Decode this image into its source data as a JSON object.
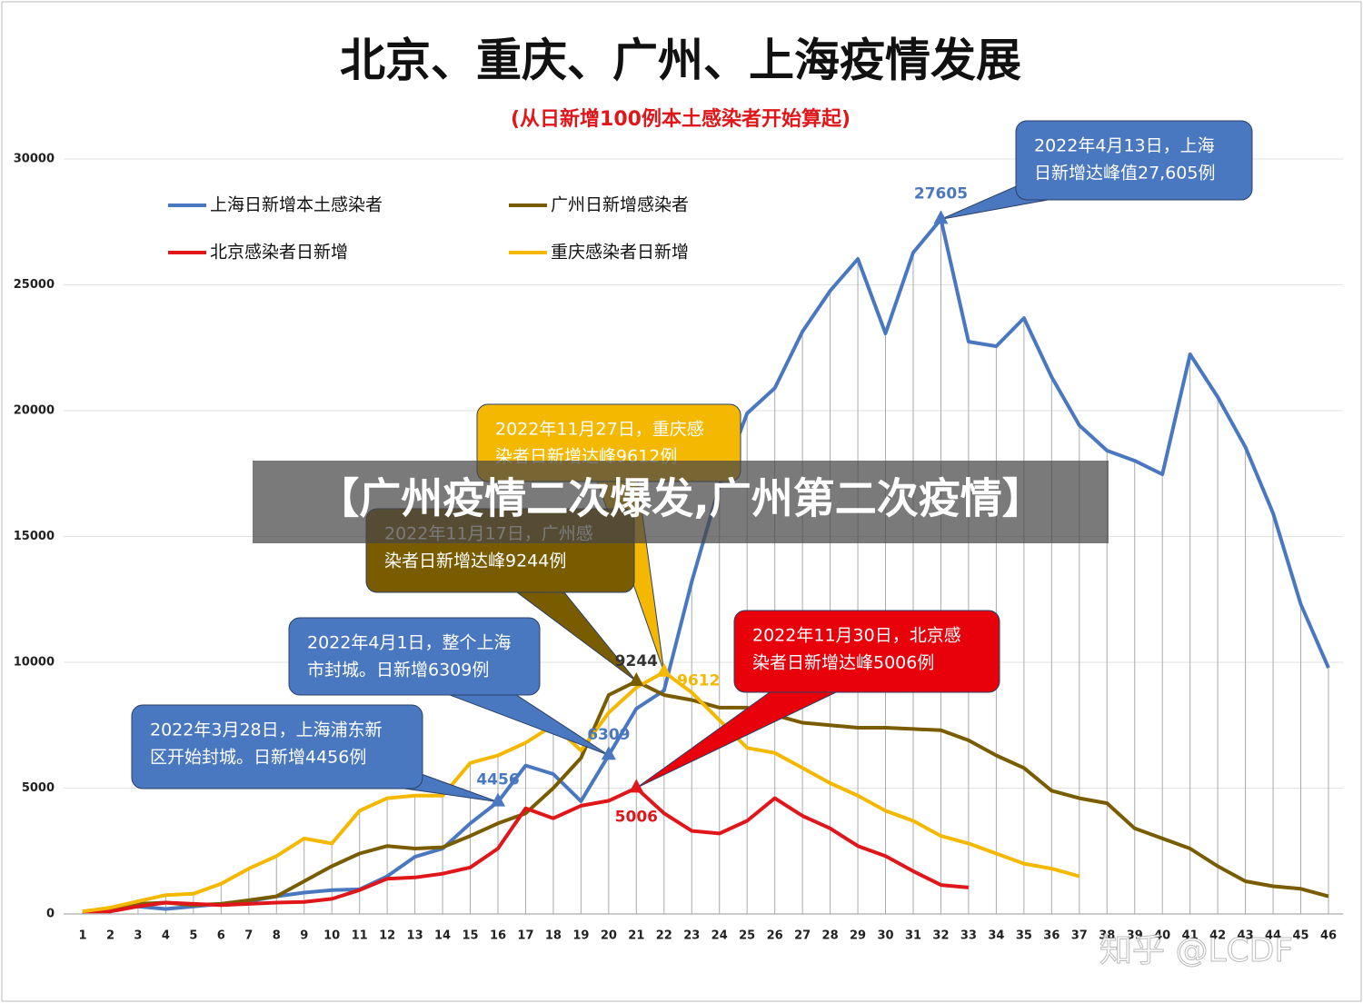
{
  "chart_data": {
    "type": "line",
    "title": "北京、重庆、广州、上海疫情发展",
    "subtitle": "(从日新增100例本土感染者开始算起)",
    "categories": [
      1,
      2,
      3,
      4,
      5,
      6,
      7,
      8,
      9,
      10,
      11,
      12,
      13,
      14,
      15,
      16,
      17,
      18,
      19,
      20,
      21,
      22,
      23,
      24,
      25,
      26,
      27,
      28,
      29,
      30,
      31,
      32,
      33,
      34,
      35,
      36,
      37,
      38,
      39,
      40,
      41,
      42,
      43,
      44,
      45,
      46
    ],
    "ylim": [
      0,
      30000
    ],
    "yticks": [
      0,
      5000,
      10000,
      15000,
      20000,
      25000,
      30000
    ],
    "series": [
      {
        "name": "上海日新增本土感染者",
        "color": "#4a78c0",
        "values": [
          100,
          200,
          300,
          200,
          300,
          400,
          500,
          700,
          850,
          950,
          980,
          1500,
          2270,
          2600,
          3600,
          4456,
          5900,
          5560,
          4480,
          6309,
          8160,
          8880,
          13210,
          17000,
          19890,
          20900,
          23140,
          24760,
          26030,
          23070,
          26280,
          27605,
          22740,
          22560,
          23680,
          21340,
          19420,
          18410,
          18010,
          17470,
          22240,
          20540,
          18550,
          15920,
          12310,
          9780
        ]
      },
      {
        "name": "广州日新增感染者",
        "color": "#7a5c00",
        "values": [
          100,
          200,
          400,
          450,
          350,
          400,
          550,
          700,
          1300,
          1900,
          2400,
          2700,
          2600,
          2650,
          3100,
          3600,
          4000,
          5000,
          6200,
          8700,
          9244,
          8700,
          8500,
          8200,
          8200,
          7900,
          7600,
          7500,
          7400,
          7400,
          7350,
          7300,
          6900,
          6300,
          5800,
          4900,
          4600,
          4400,
          3400,
          3000,
          2600,
          1900,
          1300,
          1100,
          1000,
          700
        ]
      },
      {
        "name": "北京感染者日新增",
        "color": "#e0161a",
        "values": [
          100,
          100,
          300,
          450,
          400,
          350,
          400,
          450,
          480,
          600,
          950,
          1400,
          1450,
          1600,
          1850,
          2600,
          4200,
          3800,
          4300,
          4500,
          5006,
          4000,
          3300,
          3200,
          3700,
          4600,
          3900,
          3400,
          2700,
          2300,
          1700,
          1150,
          1050,
          null,
          null,
          null,
          null,
          null,
          null,
          null,
          null,
          null,
          null,
          null,
          null,
          null
        ]
      },
      {
        "name": "重庆感染者日新增",
        "color": "#f5b800",
        "values": [
          100,
          250,
          500,
          750,
          800,
          1200,
          1800,
          2300,
          3000,
          2800,
          4100,
          4600,
          4700,
          4700,
          6000,
          6300,
          6800,
          7500,
          6500,
          8000,
          9000,
          9612,
          8800,
          7700,
          6600,
          6400,
          5800,
          5200,
          4700,
          4100,
          3700,
          3100,
          2800,
          2400,
          2000,
          1800,
          1500,
          null,
          null,
          null,
          null,
          null,
          null,
          null,
          null,
          null
        ]
      }
    ],
    "annotations": [
      [
        "2022年4月13日，上海",
        "日新增达峰值27,605例"
      ],
      [
        "2022年11月27日，重庆感",
        "染者日新增达峰9612例"
      ],
      [
        "2022年11月17日，广州感",
        "染者日新增达峰9244例"
      ],
      [
        "2022年11月30日，北京感",
        "染者日新增达峰5006例"
      ],
      [
        "2022年4月1日，整个上海",
        "市封城。日新增6309例"
      ],
      [
        "2022年3月28日，上海浦东新",
        "区开始封城。日新增4456例"
      ]
    ],
    "banner": "【广州疫情二次爆发,广州第二次疫情】",
    "watermark": "知乎 @LCDF"
  }
}
